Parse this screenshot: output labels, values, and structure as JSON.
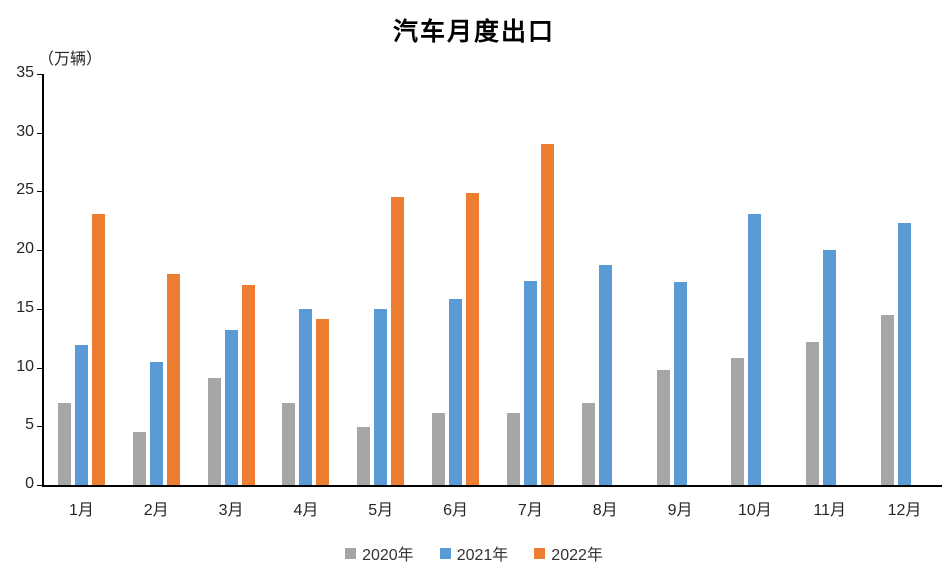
{
  "chart_data": {
    "type": "bar",
    "title": "汽车月度出口",
    "ylabel": "（万辆）",
    "xlabel": "",
    "categories": [
      "1月",
      "2月",
      "3月",
      "4月",
      "5月",
      "6月",
      "7月",
      "8月",
      "9月",
      "10月",
      "11月",
      "12月"
    ],
    "series": [
      {
        "name": "2020年",
        "color": "#a6a6a6",
        "values": [
          7.0,
          4.5,
          9.1,
          7.0,
          4.9,
          6.1,
          6.1,
          7.0,
          9.8,
          10.8,
          12.2,
          14.5
        ]
      },
      {
        "name": "2021年",
        "color": "#5b9bd5",
        "values": [
          11.9,
          10.5,
          13.2,
          15.0,
          15.0,
          15.8,
          17.4,
          18.7,
          17.3,
          23.1,
          20.0,
          22.3
        ]
      },
      {
        "name": "2022年",
        "color": "#ed7d31",
        "values": [
          23.1,
          18.0,
          17.0,
          14.1,
          24.5,
          24.9,
          29.0,
          null,
          null,
          null,
          null,
          null
        ]
      }
    ],
    "ylim": [
      0,
      35
    ],
    "yticks": [
      0,
      5,
      10,
      15,
      20,
      25,
      30,
      35
    ],
    "grid": false,
    "legend_position": "bottom",
    "axis_color": "#000000",
    "text_color": "#262626",
    "background_color": "#ffffff"
  }
}
